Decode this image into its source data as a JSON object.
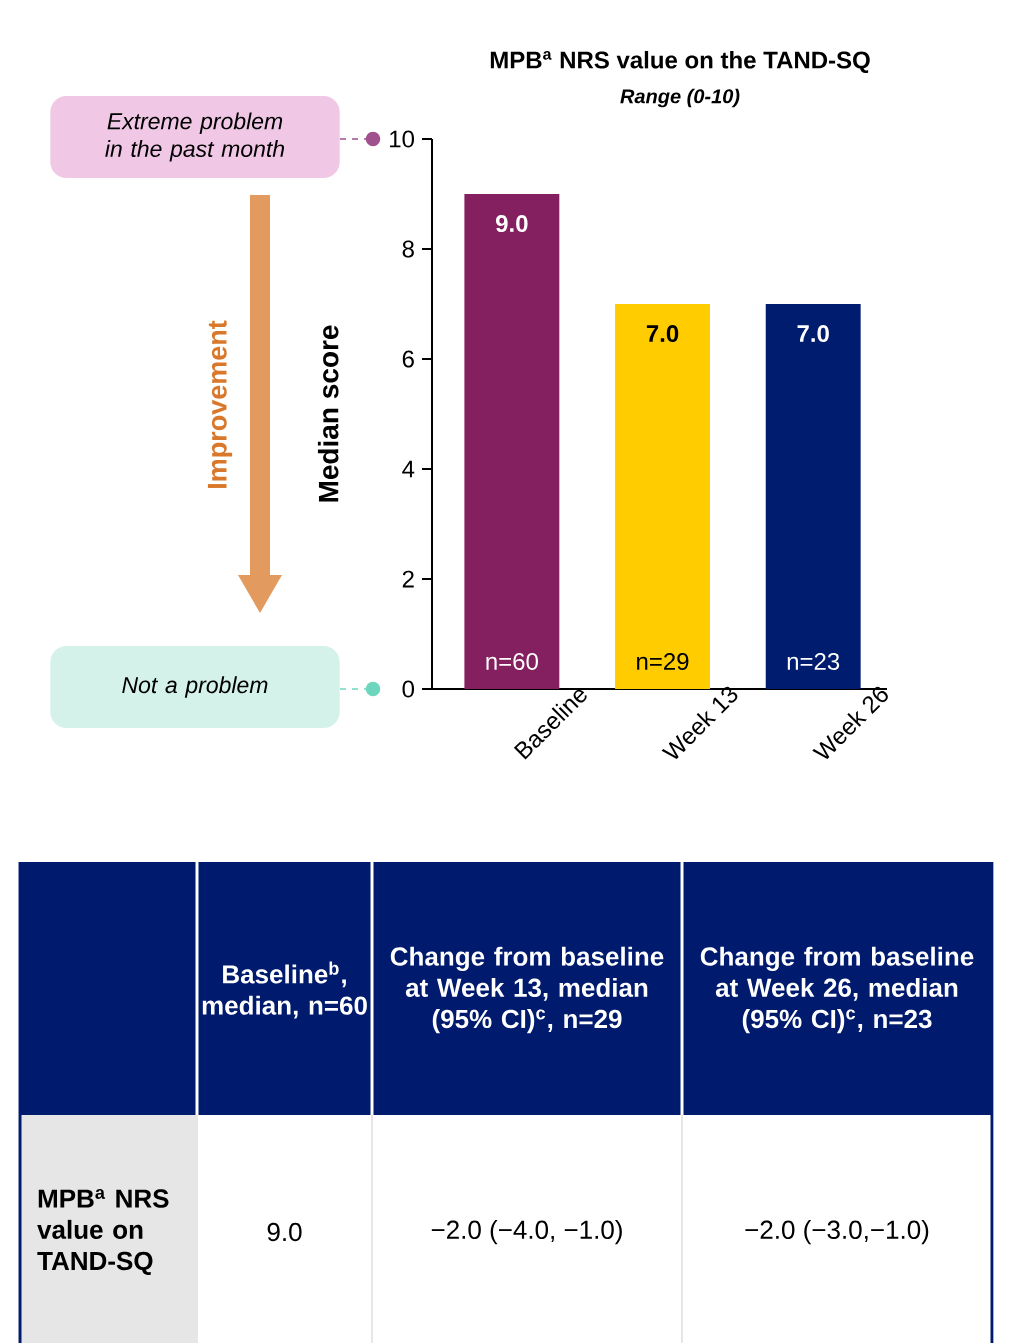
{
  "chart_data": {
    "type": "bar",
    "title": "MPB$^{a}$ NRS value on the TAND-SQ",
    "subtitle": "Range (0-10)",
    "ylabel": "Median score",
    "categories": [
      "Baseline",
      "Week 13",
      "Week 26"
    ],
    "values": [
      9.0,
      7.0,
      7.0
    ],
    "colors": [
      "#84205f",
      "#ffcc00",
      "#001c6e"
    ],
    "value_labels": [
      "9.0",
      "7.0",
      "7.0"
    ],
    "ylim": [
      0,
      10
    ],
    "yticks": [
      0,
      2,
      4,
      6,
      8,
      10
    ],
    "annotations": [
      "Extreme problem in the past month",
      "Not a problem",
      "Improvement",
      "n=60",
      "n=29",
      "n=23",
      "Baseline$^{b}$, median, n=60",
      "Change from baseline at Week 13, median (95% CI)$^{c}$, n=29",
      "Change from baseline at Week 26, median (95% CI)$^{c}$, n=23",
      "MPB$^{a}$ NRS value on TAND-SQ",
      "9.0",
      "−2.0 (−4.0, −1.0)",
      "−2.0 (−3.0,−1.0)"
    ]
  }
}
